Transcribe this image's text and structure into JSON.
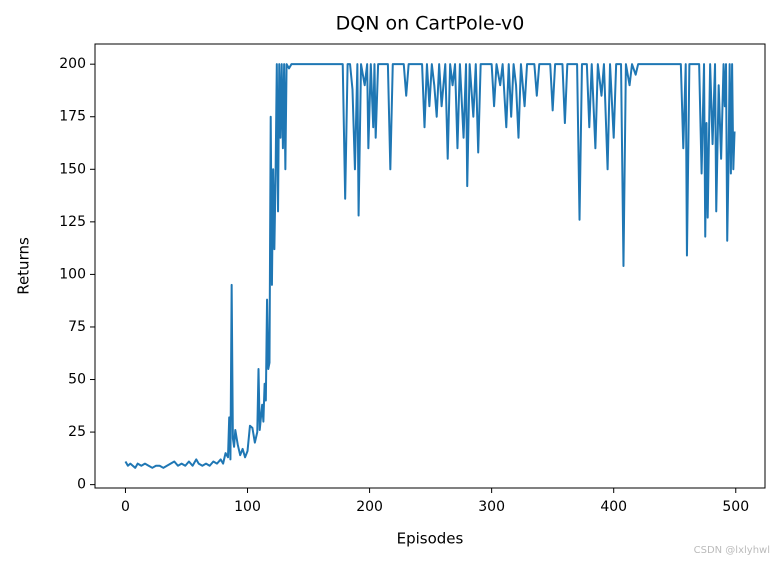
{
  "chart_data": {
    "type": "line",
    "title": "DQN on CartPole-v0",
    "xlabel": "Episodes",
    "ylabel": "Returns",
    "watermark": "CSDN @lxlyhwl",
    "x": [
      0,
      2,
      4,
      6,
      8,
      10,
      13,
      16,
      19,
      22,
      25,
      28,
      31,
      34,
      37,
      40,
      43,
      46,
      49,
      52,
      55,
      58,
      60,
      63,
      66,
      69,
      72,
      75,
      78,
      80,
      82,
      84,
      85,
      86,
      87,
      88,
      89,
      90,
      92,
      94,
      96,
      98,
      100,
      102,
      104,
      106,
      108,
      109,
      110,
      112,
      113,
      114,
      115,
      116,
      117,
      118,
      119,
      120,
      121,
      122,
      123,
      124,
      125,
      126,
      127,
      128,
      129,
      130,
      131,
      132,
      134,
      136,
      160,
      178,
      180,
      182,
      184,
      186,
      188,
      190,
      191,
      193,
      196,
      198,
      199,
      201,
      203,
      204,
      205,
      207,
      215,
      217,
      219,
      228,
      230,
      232,
      243,
      245,
      247,
      249,
      251,
      253,
      255,
      257,
      259,
      262,
      264,
      266,
      268,
      270,
      272,
      274,
      277,
      279,
      280,
      282,
      285,
      287,
      289,
      291,
      300,
      302,
      304,
      307,
      309,
      312,
      314,
      316,
      318,
      320,
      322,
      324,
      327,
      329,
      335,
      337,
      339,
      348,
      350,
      352,
      358,
      360,
      362,
      370,
      372,
      374,
      378,
      380,
      382,
      385,
      387,
      390,
      392,
      395,
      397,
      400,
      402,
      406,
      408,
      410,
      413,
      415,
      418,
      420,
      455,
      457,
      459,
      460,
      462,
      470,
      472,
      474,
      475,
      476,
      477,
      479,
      481,
      483,
      484,
      486,
      488,
      490,
      491,
      492,
      493,
      494,
      495,
      496,
      497,
      498,
      499
    ],
    "series": [
      {
        "name": "DQN",
        "color": "#1f77b4",
        "values": [
          11,
          9,
          10,
          9,
          8,
          10,
          9,
          10,
          9,
          8,
          9,
          9,
          8,
          9,
          10,
          11,
          9,
          10,
          9,
          11,
          9,
          12,
          10,
          9,
          10,
          9,
          11,
          10,
          12,
          10,
          15,
          13,
          32,
          12,
          95,
          22,
          18,
          26,
          19,
          14,
          17,
          13,
          16,
          28,
          27,
          20,
          25,
          55,
          26,
          38,
          30,
          48,
          40,
          88,
          55,
          58,
          175,
          95,
          150,
          112,
          148,
          200,
          130,
          200,
          165,
          200,
          160,
          200,
          150,
          200,
          198,
          200,
          200,
          200,
          136,
          200,
          200,
          188,
          150,
          200,
          128,
          200,
          190,
          200,
          160,
          200,
          170,
          200,
          165,
          200,
          200,
          150,
          200,
          200,
          185,
          200,
          200,
          170,
          200,
          180,
          200,
          190,
          175,
          200,
          180,
          200,
          155,
          200,
          190,
          200,
          160,
          200,
          165,
          200,
          142,
          200,
          175,
          200,
          158,
          200,
          200,
          180,
          200,
          190,
          200,
          170,
          200,
          175,
          200,
          190,
          165,
          200,
          180,
          200,
          200,
          185,
          200,
          200,
          178,
          200,
          200,
          172,
          200,
          200,
          126,
          200,
          200,
          170,
          200,
          160,
          200,
          185,
          200,
          150,
          200,
          165,
          200,
          200,
          104,
          200,
          190,
          200,
          195,
          200,
          200,
          160,
          200,
          109,
          200,
          200,
          148,
          200,
          118,
          172,
          127,
          200,
          162,
          200,
          130,
          190,
          155,
          200,
          180,
          200,
          116,
          150,
          200,
          148,
          200,
          150,
          168
        ]
      }
    ],
    "xlim": [
      -24.95,
      523.95
    ],
    "ylim": [
      -1.6,
      209.6
    ],
    "xticks": [
      0,
      100,
      200,
      300,
      400,
      500
    ],
    "yticks": [
      0,
      25,
      50,
      75,
      100,
      125,
      150,
      175,
      200
    ]
  }
}
